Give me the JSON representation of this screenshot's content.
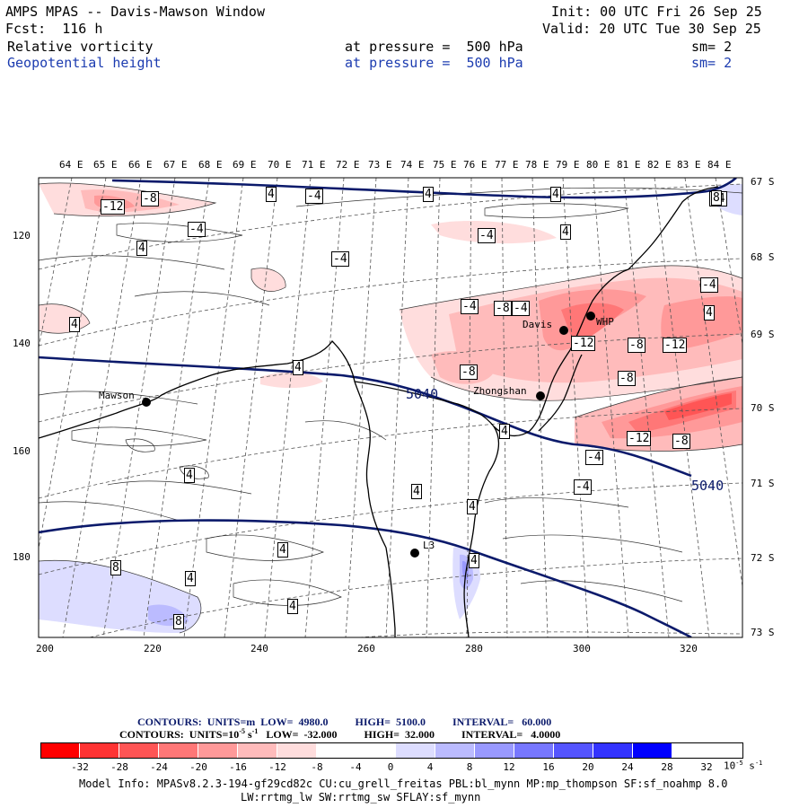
{
  "header": {
    "title_line": "AMPS MPAS -- Davis-Mawson Window",
    "forecast_line": "Fcst:  116 h",
    "init_line": "Init: 00 UTC Fri 26 Sep 25",
    "valid_line": "Valid: 20 UTC Tue 30 Sep 25",
    "field1_name": "Relative vorticity",
    "field1_level": "at pressure =  500 hPa",
    "field1_sm": "sm= 2",
    "field2_name": "Geopotential height",
    "field2_level": "at pressure =  500 hPa",
    "field2_sm": "sm= 2"
  },
  "map": {
    "top_axis_labels": [
      "64 E",
      "65 E",
      "66 E",
      "67 E",
      "68 E",
      "69 E",
      "70 E",
      "71 E",
      "72 E",
      "73 E",
      "74 E",
      "75 E",
      "76 E",
      "77 E",
      "78 E",
      "79 E",
      "80 E",
      "81 E",
      "82 E",
      "83 E",
      "84 E"
    ],
    "right_axis_labels": [
      "67 S",
      "68 S",
      "69 S",
      "70 S",
      "71 S",
      "72 S",
      "73 S"
    ],
    "left_axis_labels": [
      "120",
      "140",
      "160",
      "180"
    ],
    "bottom_axis_labels": [
      "200",
      "220",
      "240",
      "260",
      "280",
      "300",
      "320"
    ],
    "stations": [
      {
        "name": "Mawson"
      },
      {
        "name": "Davis"
      },
      {
        "name": "WHP"
      },
      {
        "name": "Zhongshan"
      },
      {
        "name": "L3"
      }
    ],
    "height_contour_labels": [
      "5040",
      "5040"
    ],
    "vorticity_labels": [
      "-12",
      "-8",
      "4",
      "-4",
      "4",
      "4",
      "-4",
      "4",
      "-4",
      "4",
      "-4",
      "-4",
      "-8",
      "-12",
      "-8",
      "-12",
      "-8",
      "-4",
      "-4",
      "-8",
      "4",
      "4",
      "4",
      "4",
      "4",
      "-12",
      "-8",
      "-4",
      "-4",
      "4",
      "4",
      "8",
      "4",
      "4",
      "8",
      "4",
      "4",
      "-4",
      "8"
    ]
  },
  "legend": {
    "contour1": "CONTOURS:  UNITS=m  LOW=  4980.0          HIGH=  5100.0          INTERVAL=   60.000",
    "contour2": "CONTOURS:  UNITS=10",
    "contour2_exp": "-5",
    "contour2_rest": " s",
    "contour2_exp2": "-1",
    "contour2_tail": "   LOW=  -32.000          HIGH=  32.000          INTERVAL=   4.0000",
    "colors": [
      "#ff0000",
      "#ff3333",
      "#ff5555",
      "#ff7777",
      "#ff9999",
      "#ffbbbb",
      "#ffdddd",
      "#ffffff",
      "#ffffff",
      "#ddddff",
      "#bbbbff",
      "#9999ff",
      "#7777ff",
      "#5555ff",
      "#3333ff",
      "#0000ff"
    ],
    "ticks": [
      "-32",
      "-28",
      "-24",
      "-20",
      "-16",
      "-12",
      "-8",
      "-4",
      "0",
      "4",
      "8",
      "12",
      "16",
      "20",
      "24",
      "28",
      "32"
    ],
    "units": "10",
    "units_exp": "-5",
    "units_s": " s",
    "units_exp2": "-1"
  },
  "footer": {
    "line1": "Model Info: MPASv8.2.3-194-gf29cd82c CU:cu_grell_freitas PBL:bl_mynn MP:mp_thompson SF:sf_noahmp 8.0",
    "line2": "LW:rrtmg_lw SW:rrtmg_sw SFLAY:sf_mynn"
  }
}
